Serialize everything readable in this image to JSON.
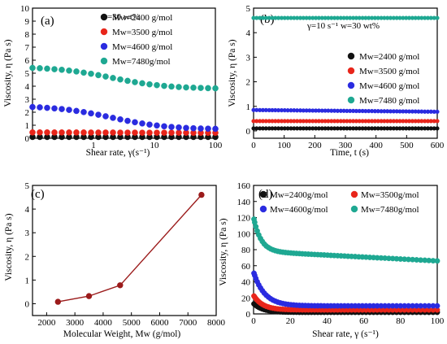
{
  "colors": {
    "M2400": "#111111",
    "M3500": "#e8251a",
    "M4600": "#2a2be0",
    "M7480": "#1ea892",
    "line_c": "#9b1b1b"
  },
  "chart_data": [
    {
      "type": "scatter",
      "panel_label": "(a)",
      "annotation": "w=30 wt%",
      "xlabel": "Shear rate, γ(s⁻¹)",
      "ylabel": "Viscosity, η (Pa s)",
      "xscale": "log",
      "xlim": [
        0.1,
        100
      ],
      "ylim": [
        0,
        10
      ],
      "xticks": [
        1,
        10,
        100
      ],
      "yticks": [
        0,
        1,
        2,
        3,
        4,
        5,
        6,
        7,
        8,
        9,
        10
      ],
      "legend_position": "top-right",
      "series": [
        {
          "name": "Mw=2400 g/mol",
          "color_key": "M2400",
          "x_range": [
            0.1,
            100
          ],
          "y_start": 0.1,
          "y_end": 0.1,
          "n": 26
        },
        {
          "name": "Mw=3500 g/mol",
          "color_key": "M3500",
          "x_range": [
            0.1,
            100
          ],
          "y_start": 0.45,
          "y_end": 0.42,
          "n": 26
        },
        {
          "name": "Mw=4600 g/mol",
          "color_key": "M4600",
          "x_range": [
            0.1,
            100
          ],
          "y_start": 2.5,
          "y_end": 0.68,
          "n": 26
        },
        {
          "name": "Mw=7480g/mol",
          "color_key": "M7480",
          "x_range": [
            0.1,
            100
          ],
          "y_start": 5.5,
          "y_end": 3.8,
          "n": 26
        }
      ]
    },
    {
      "type": "scatter",
      "panel_label": "(b)",
      "annotation": "γ=10 s⁻¹ w=30 wt%",
      "xlabel": "Time, t (s)",
      "ylabel": "Viscosity, η (Pa s)",
      "xlim": [
        0,
        600
      ],
      "ylim": [
        -0.3,
        5.0
      ],
      "xticks": [
        0,
        100,
        200,
        300,
        400,
        500,
        600
      ],
      "yticks": [
        0,
        1,
        2,
        3,
        4,
        5
      ],
      "legend_position": "right",
      "series": [
        {
          "name": "Mw=2400 g/mol",
          "color_key": "M2400",
          "x_range": [
            0,
            600
          ],
          "y_start": 0.1,
          "y_end": 0.1,
          "n": 60
        },
        {
          "name": "Mw=3500 g/mol",
          "color_key": "M3500",
          "x_range": [
            0,
            600
          ],
          "y_start": 0.4,
          "y_end": 0.4,
          "n": 60
        },
        {
          "name": "Mw=4600 g/mol",
          "color_key": "M4600",
          "x_range": [
            0,
            600
          ],
          "y_start": 0.85,
          "y_end": 0.78,
          "n": 60
        },
        {
          "name": "Mw=7480 g/mol",
          "color_key": "M7480",
          "x_range": [
            0,
            600
          ],
          "y_start": 4.6,
          "y_end": 4.6,
          "n": 60
        }
      ]
    },
    {
      "type": "line",
      "panel_label": "(c)",
      "xlabel": "Molecular Weight, Mw (g/mol)",
      "ylabel": "Viscosity, η (Pa s)",
      "xlim": [
        1500,
        8000
      ],
      "ylim": [
        -0.5,
        5
      ],
      "xticks": [
        2000,
        3000,
        4000,
        5000,
        6000,
        7000,
        8000
      ],
      "yticks": [
        0,
        1,
        2,
        3,
        4,
        5
      ],
      "x": [
        2400,
        3500,
        4600,
        7480
      ],
      "y": [
        0.08,
        0.32,
        0.78,
        4.6
      ],
      "color_key": "line_c"
    },
    {
      "type": "scatter",
      "panel_label": "(d)",
      "xlabel": "Shear rate, γ (s⁻¹)",
      "ylabel": "Viscosity, η (Pa s)",
      "xlim": [
        0,
        100
      ],
      "ylim": [
        0,
        160
      ],
      "xticks": [
        0,
        20,
        40,
        60,
        80,
        100
      ],
      "yticks": [
        0,
        20,
        40,
        60,
        80,
        100,
        120,
        140,
        160
      ],
      "legend_position": "top",
      "series": [
        {
          "name": "Mw=2400g/mol",
          "color_key": "M2400",
          "y0": 13,
          "y_inf": 2,
          "tau": 5,
          "n": 60
        },
        {
          "name": "Mw=3500g/mol",
          "color_key": "M3500",
          "y0": 23,
          "y_inf": 5,
          "tau": 5,
          "n": 60
        },
        {
          "name": "Mw=4600g/mol",
          "color_key": "M4600",
          "y0": 52,
          "y_inf": 10,
          "tau": 6,
          "n": 60
        },
        {
          "name": "Mw=7480g/mol",
          "color_key": "M7480",
          "y0": 120,
          "y_inf": 78,
          "tau": 4,
          "n": 60,
          "slope": -0.12
        }
      ]
    }
  ]
}
